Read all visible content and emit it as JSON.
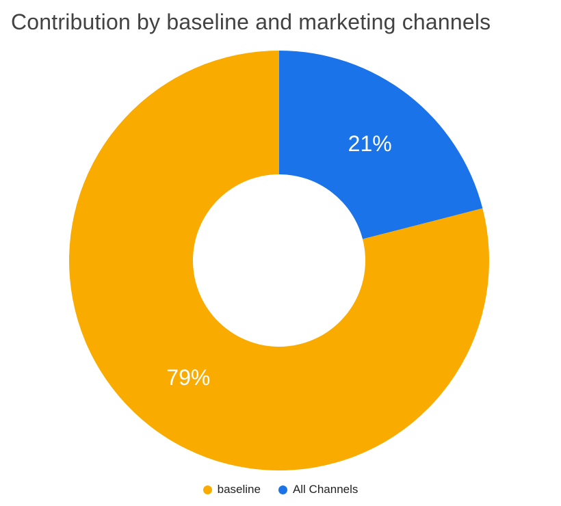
{
  "title": "Contribution by baseline and marketing channels",
  "chart_data": {
    "type": "pie",
    "subtype": "donut",
    "title": "Contribution by baseline and marketing channels",
    "categories": [
      "baseline",
      "All Channels"
    ],
    "values": [
      79,
      21
    ],
    "data_labels": [
      "79%",
      "21%"
    ],
    "colors": [
      "#F9AB00",
      "#1A73E8"
    ],
    "label_color": "#FFFFFF",
    "inner_radius_ratio": 0.41,
    "start_angle_deg": 0,
    "direction": "clockwise",
    "legend_position": "bottom",
    "grid": false
  },
  "legend": {
    "items": [
      {
        "label": "baseline",
        "color": "#F9AB00"
      },
      {
        "label": "All Channels",
        "color": "#1A73E8"
      }
    ]
  }
}
